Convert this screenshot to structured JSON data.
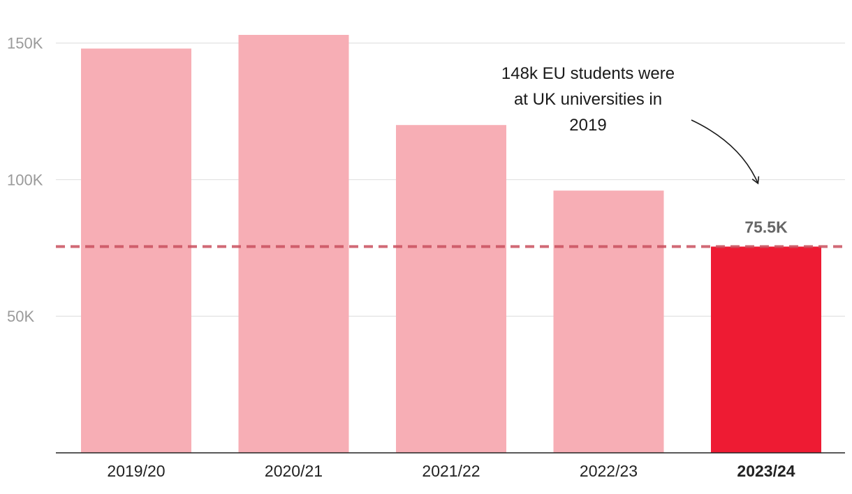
{
  "chart_data": {
    "type": "bar",
    "title": "",
    "xlabel": "",
    "ylabel": "",
    "categories": [
      "2019/20",
      "2020/21",
      "2021/22",
      "2022/23",
      "2023/24"
    ],
    "values": [
      148,
      153,
      120,
      96,
      75.5
    ],
    "highlight_index": 4,
    "ylim": [
      0,
      153
    ],
    "yticks": [
      {
        "value": 50,
        "label": "50K"
      },
      {
        "value": 100,
        "label": "100K"
      },
      {
        "value": 150,
        "label": "150K"
      }
    ],
    "grid": true,
    "reference_line": {
      "value": 75.5,
      "style": "dashed"
    },
    "data_labels": [
      {
        "index": 4,
        "text": "75.5K"
      }
    ],
    "annotation": {
      "lines": [
        "148k EU students were",
        "at UK universities in",
        "2019"
      ],
      "points_to_index": 4
    },
    "colors": {
      "bar": "#f7aeb5",
      "highlight_bar": "#ee1b33",
      "reference_line": "#c9505e",
      "grid": "#e3e3e3",
      "axis": "#222222"
    }
  }
}
